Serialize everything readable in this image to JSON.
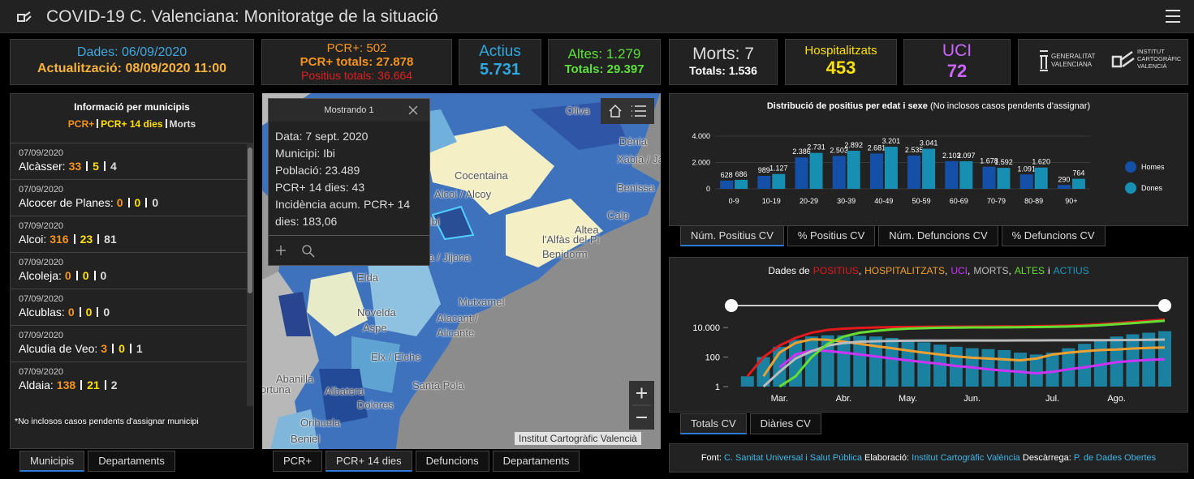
{
  "header": {
    "title": "COVID-19 C. Valenciana: Monitoratge de la situació"
  },
  "stats": {
    "dades": "Dades: 06/09/2020",
    "actualitzacio": "Actualització: 08/09/2020 11:00",
    "pcr": "PCR+: 502",
    "pcr_totals": "PCR+ totals: 27.878",
    "positius_totals": "Positius totals: 36.664",
    "actius_label": "Actius",
    "actius_value": "5.731",
    "altes": "Altes: 1.279",
    "altes_totals": "Totals: 29.397",
    "morts": "Morts: 7",
    "morts_totals": "Totals: 1.536",
    "hosp_label": "Hospitalitzats",
    "hosp_value": "453",
    "uci_label": "UCI",
    "uci_value": "72"
  },
  "logos": {
    "generalitat": [
      "GENERALITAT",
      "VALENCIANA"
    ],
    "icv": [
      "INSTITUT",
      "CARTOGRÀFIC",
      "VALENCIÀ"
    ]
  },
  "municipis": {
    "title": "Informació per municipis",
    "legend": [
      "PCR+",
      "PCR+ 14 dies",
      "Morts"
    ],
    "colors": [
      "#f7941d",
      "#ffe000",
      "#dddddd"
    ],
    "items": [
      {
        "date": "07/09/2020",
        "name": "Alcàsser:",
        "values": [
          33,
          5,
          4
        ]
      },
      {
        "date": "07/09/2020",
        "name": "Alcocer de Planes:",
        "values": [
          0,
          0,
          0
        ]
      },
      {
        "date": "07/09/2020",
        "name": "Alcoi:",
        "values": [
          316,
          23,
          81
        ]
      },
      {
        "date": "07/09/2020",
        "name": "Alcoleja:",
        "values": [
          0,
          0,
          0
        ]
      },
      {
        "date": "07/09/2020",
        "name": "Alcublas:",
        "values": [
          0,
          0,
          0
        ]
      },
      {
        "date": "07/09/2020",
        "name": "Alcudia de Veo:",
        "values": [
          3,
          0,
          1
        ]
      },
      {
        "date": "07/09/2020",
        "name": "Aldaia:",
        "values": [
          138,
          21,
          2
        ]
      }
    ],
    "note": "*No inclosos casos pendents d'assignar municipi",
    "tabs": [
      "Municipis",
      "Departaments"
    ]
  },
  "map": {
    "popup": {
      "title": "Mostrando 1",
      "lines": [
        "Data: 7 sept. 2020",
        "Municipi: Ibi",
        "Població: 23.489",
        "PCR+ 14 dies: 43",
        "Incidència acum. PCR+ 14 dies: 183,06"
      ]
    },
    "labels": [
      "Oliva",
      "Dénia",
      "Xàbia / Jávea",
      "Benissa",
      "Calp",
      "Altea",
      "l'Alfàs del Pi",
      "Benidorm",
      "Cocentaina",
      "Alcoi / Alcoy",
      "Ibi",
      "Xixona / Jijona",
      "Elda",
      "Novelda",
      "Aspe",
      "Mutxamel",
      "Alacant / Alicante",
      "Elx / Elche",
      "Santa Pola",
      "Abanilla",
      "Fortuna",
      "Albatera",
      "Dolores",
      "Orihuela",
      "Beniel"
    ],
    "attribution": "Institut Cartogràfic Valencià",
    "tabs": [
      "PCR+",
      "PCR+ 14 dies",
      "Defuncions",
      "Departaments"
    ]
  },
  "chart_data": [
    {
      "type": "bar",
      "title": "Distribució de positius per edat i sexe",
      "subtitle": "(No inclosos casos pendents d'assignar)",
      "categories": [
        "0-9",
        "10-19",
        "20-29",
        "30-39",
        "40-49",
        "50-59",
        "60-69",
        "70-79",
        "80-89",
        "90+"
      ],
      "series": [
        {
          "name": "Homes",
          "color": "#1450a8",
          "values": [
            628,
            989,
            2386,
            2503,
            2681,
            2535,
            2103,
            1678,
            1091,
            290
          ],
          "value_labels": [
            "628",
            "989",
            "2.386",
            "2.503",
            "2.681",
            "2.535",
            "2.103",
            "1.678",
            "1.091",
            "290"
          ]
        },
        {
          "name": "Dones",
          "color": "#178fb3",
          "values": [
            686,
            1127,
            2731,
            2892,
            3201,
            3041,
            2097,
            1592,
            1620,
            764
          ],
          "value_labels": [
            "686",
            "1.127",
            "2.731",
            "2.892",
            "3.201",
            "3.041",
            "2.097",
            "1.592",
            "1.620",
            "764"
          ]
        }
      ],
      "ylim": [
        0,
        4000
      ],
      "yticks": [
        0,
        {
          "value": 2000,
          "label": "2.000"
        },
        {
          "value": 4000,
          "label": "4.000"
        }
      ],
      "grid": true,
      "legend": "right"
    },
    {
      "type": "line",
      "title": "Dades de",
      "title_separators": [
        ",",
        ",",
        ",",
        ",",
        "i"
      ],
      "categories": [
        null,
        null,
        null,
        "Mar.",
        null,
        null,
        null,
        "Abr.",
        null,
        null,
        null,
        "May.",
        null,
        null,
        null,
        "Jun.",
        null,
        null,
        null,
        null,
        "Jul.",
        null,
        null,
        null,
        "Ago.",
        null,
        null,
        null
      ],
      "log_scale": true,
      "ylim": [
        1,
        100000
      ],
      "yticks": [
        1,
        100,
        {
          "value": 10000,
          "label": "10.000"
        }
      ],
      "series": [
        {
          "name": "POSITIUS",
          "color": "#e31a1c",
          "values": [
            null,
            5,
            100,
            600,
            2000,
            4500,
            7000,
            8500,
            9500,
            10200,
            10800,
            11100,
            11300,
            11500,
            11600,
            11700,
            11800,
            11900,
            12100,
            12500,
            13000,
            13800,
            15000,
            17000,
            20000,
            24000,
            29000,
            35000
          ]
        },
        {
          "name": "HOSPITALITZATS",
          "color": "#f0a030",
          "values": [
            null,
            null,
            5,
            200,
            900,
            1600,
            1500,
            1100,
            800,
            550,
            400,
            280,
            200,
            150,
            110,
            90,
            80,
            70,
            60,
            80,
            150,
            200,
            250,
            300,
            330,
            380,
            420,
            450
          ]
        },
        {
          "name": "UCI",
          "color": "#cc33ff",
          "values": [
            null,
            null,
            null,
            20,
            150,
            280,
            260,
            200,
            150,
            110,
            80,
            60,
            45,
            35,
            25,
            20,
            15,
            12,
            10,
            8,
            10,
            15,
            20,
            30,
            45,
            55,
            65,
            72
          ]
        },
        {
          "name": "MORTS",
          "color": "#bbbbbb",
          "values": [
            null,
            null,
            1,
            10,
            80,
            250,
            600,
            900,
            1100,
            1200,
            1250,
            1280,
            1300,
            1320,
            1330,
            1335,
            1340,
            1345,
            1350,
            1360,
            1370,
            1380,
            1390,
            1400,
            1420,
            1450,
            1490,
            1530
          ]
        },
        {
          "name": "ALTES",
          "color": "#66dd33",
          "values": [
            null,
            null,
            null,
            1,
            5,
            100,
            800,
            2500,
            4500,
            6000,
            7500,
            8500,
            9200,
            9700,
            10000,
            10200,
            10300,
            10400,
            10600,
            10900,
            11300,
            11800,
            12800,
            14500,
            17000,
            20000,
            24000,
            29000
          ]
        },
        {
          "name": "ACTIUS",
          "color": "#1a9ac0",
          "mark": "bar",
          "values": [
            null,
            5,
            100,
            500,
            1500,
            2500,
            3000,
            3000,
            2800,
            2500,
            2000,
            1500,
            1000,
            700,
            500,
            400,
            350,
            300,
            200,
            150,
            200,
            400,
            800,
            1500,
            2500,
            3500,
            4500,
            5731
          ]
        }
      ]
    }
  ],
  "bar_tabs": [
    "Núm. Positius CV",
    "% Positius CV",
    "Núm. Defuncions CV",
    "% Defuncions CV"
  ],
  "line_tabs": [
    "Totals CV",
    "Diàries CV"
  ],
  "footer": {
    "font_label": "Font:",
    "font": "C. Sanitat Universal i Salut Pública",
    "elab_label": "Elaboració:",
    "elab": "Institut Cartogràfic València",
    "desc_label": "Descàrrega:",
    "desc": "P. de Dades Obertes"
  }
}
